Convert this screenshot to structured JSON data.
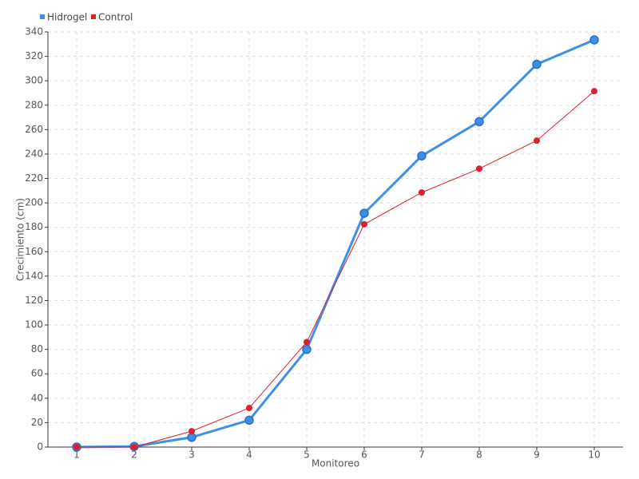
{
  "chart_data": {
    "type": "line",
    "x_label": "Monitoreo",
    "y_label": "Crecimiento (cm)",
    "categories": [
      "1",
      "2",
      "3",
      "4",
      "5",
      "6",
      "7",
      "8",
      "9",
      "10"
    ],
    "series": [
      {
        "name": "Hidrogel",
        "color": "#3d8fe8",
        "values": [
          0,
          0.5,
          8,
          22,
          80,
          191.5,
          238.5,
          266.5,
          313.5,
          333.5
        ]
      },
      {
        "name": "Control",
        "color": "#e01f2b",
        "values": [
          0,
          0,
          13,
          32,
          86,
          182.5,
          208.5,
          228,
          251,
          291.5
        ]
      }
    ],
    "ylim": [
      0,
      340
    ],
    "yticks": [
      0,
      20,
      40,
      60,
      80,
      100,
      120,
      140,
      160,
      180,
      200,
      220,
      240,
      260,
      280,
      300,
      320,
      340
    ],
    "grid": true,
    "legend": "top-left"
  }
}
